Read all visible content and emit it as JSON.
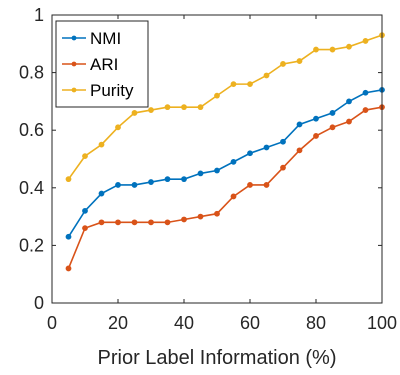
{
  "chart_data": {
    "type": "line",
    "title": "",
    "xlabel": "Prior Label Information (%)",
    "ylabel": "",
    "xlim": [
      0,
      100
    ],
    "ylim": [
      0,
      1
    ],
    "x_ticks": [
      0,
      20,
      40,
      60,
      80,
      100
    ],
    "y_ticks": [
      0,
      0.2,
      0.4,
      0.6,
      0.8,
      1
    ],
    "x_tick_labels": [
      "0",
      "20",
      "40",
      "60",
      "80",
      "100"
    ],
    "y_tick_labels": [
      "0",
      "0.2",
      "0.4",
      "0.6",
      "0.8",
      "1"
    ],
    "grid": false,
    "legend_position": "top-left",
    "x": [
      5,
      10,
      15,
      20,
      25,
      30,
      35,
      40,
      45,
      50,
      55,
      60,
      65,
      70,
      75,
      80,
      85,
      90,
      95,
      100
    ],
    "series": [
      {
        "name": "NMI",
        "color": "#0072BD",
        "values": [
          0.23,
          0.32,
          0.38,
          0.41,
          0.41,
          0.42,
          0.43,
          0.43,
          0.45,
          0.46,
          0.49,
          0.52,
          0.54,
          0.56,
          0.62,
          0.64,
          0.66,
          0.7,
          0.73,
          0.74
        ]
      },
      {
        "name": "ARI",
        "color": "#D95319",
        "values": [
          0.12,
          0.26,
          0.28,
          0.28,
          0.28,
          0.28,
          0.28,
          0.29,
          0.3,
          0.31,
          0.37,
          0.41,
          0.41,
          0.47,
          0.53,
          0.58,
          0.61,
          0.63,
          0.67,
          0.68
        ]
      },
      {
        "name": "Purity",
        "color": "#EDB120",
        "values": [
          0.43,
          0.51,
          0.55,
          0.61,
          0.66,
          0.67,
          0.68,
          0.68,
          0.68,
          0.72,
          0.76,
          0.76,
          0.79,
          0.83,
          0.84,
          0.88,
          0.88,
          0.89,
          0.91,
          0.93
        ]
      }
    ]
  }
}
